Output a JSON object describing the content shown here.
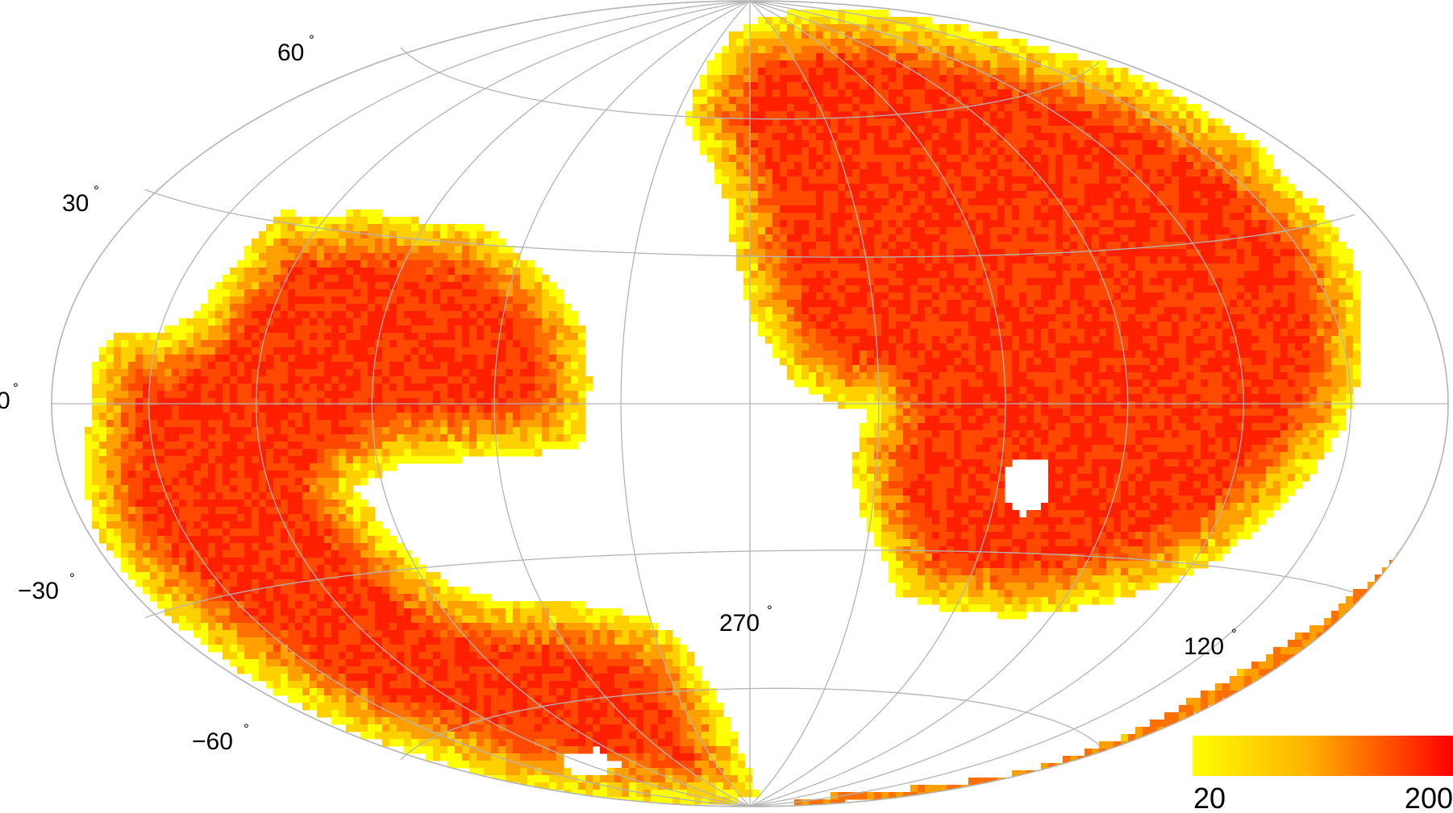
{
  "map": {
    "projection": "aitoff",
    "graticule": {
      "color": "#b4b4b4",
      "latitude_lines": [
        -60,
        -30,
        0,
        30,
        60
      ],
      "longitude_step": 30
    },
    "latitude_labels": [
      {
        "value": "60",
        "deg": "°"
      },
      {
        "value": "30",
        "deg": "°"
      },
      {
        "value": "0",
        "deg": "°"
      },
      {
        "value": "−30",
        "deg": "°"
      },
      {
        "value": "−60",
        "deg": "°"
      }
    ],
    "longitude_labels": [
      {
        "value": "270",
        "deg": "°"
      },
      {
        "value": "120",
        "deg": "°"
      }
    ],
    "density_colors": [
      "#ffff00",
      "#ffd000",
      "#ffa000",
      "#ff7000",
      "#ff4800",
      "#ff2000"
    ]
  },
  "colorbar": {
    "min_label": "20",
    "max_label": "200",
    "min_value": 20,
    "max_value": 200,
    "color_low": "#ffff00",
    "color_high": "#ff0000"
  }
}
